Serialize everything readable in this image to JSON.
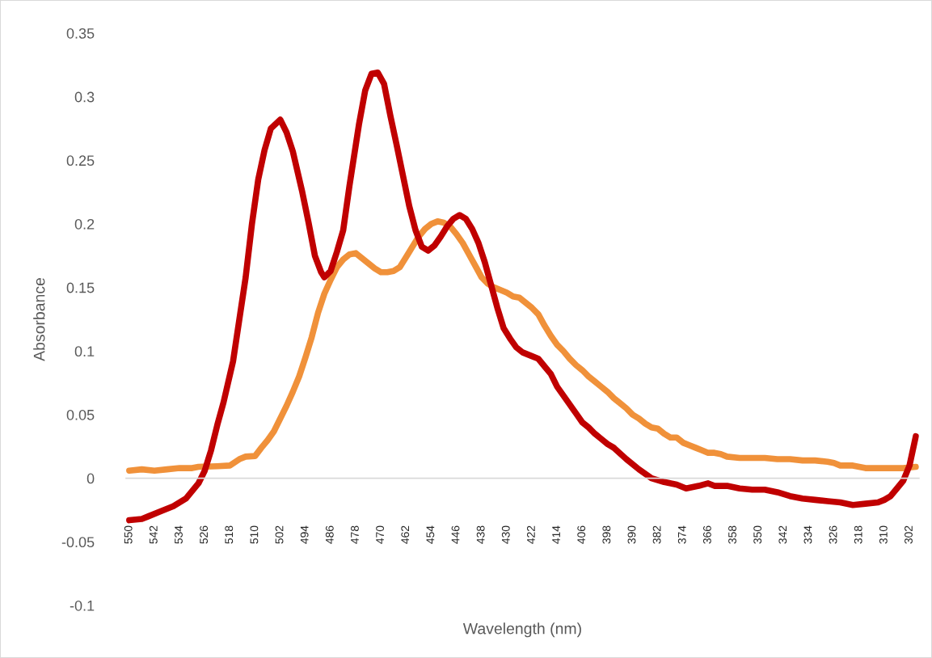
{
  "chart_data": {
    "type": "line",
    "xlabel": "Wavelength (nm)",
    "ylabel": "Absorbance",
    "xlim": [
      551,
      299
    ],
    "xticks": [
      550,
      542,
      534,
      526,
      518,
      510,
      502,
      494,
      486,
      478,
      470,
      462,
      454,
      446,
      438,
      430,
      422,
      414,
      406,
      398,
      390,
      382,
      374,
      366,
      358,
      350,
      342,
      334,
      326,
      318,
      310,
      302
    ],
    "ylim": [
      -0.1,
      0.35
    ],
    "yticks": [
      -0.1,
      -0.05,
      0,
      0.05,
      0.1,
      0.15,
      0.2,
      0.25,
      0.3,
      0.35
    ],
    "series": [
      {
        "color": "#f0913a",
        "x": [
          550,
          546,
          542,
          538,
          534,
          530,
          528,
          522,
          518,
          515,
          513,
          510,
          508,
          506,
          504,
          502,
          500,
          498,
          496,
          494,
          492,
          490,
          488,
          486,
          484,
          482,
          480,
          478,
          476,
          474,
          472,
          470,
          468,
          466,
          464,
          462,
          460,
          458,
          456,
          454,
          452,
          450,
          448,
          446,
          444,
          442,
          440,
          438,
          436,
          434,
          432,
          430,
          428,
          426,
          424,
          422,
          420,
          418,
          416,
          414,
          412,
          410,
          408,
          406,
          404,
          402,
          400,
          398,
          396,
          394,
          392,
          390,
          388,
          386,
          384,
          382,
          380,
          378,
          376,
          374,
          372,
          370,
          368,
          366,
          364,
          362,
          360,
          356,
          352,
          348,
          344,
          340,
          336,
          332,
          328,
          326,
          324,
          320,
          316,
          312,
          308,
          304,
          300
        ],
        "values": [
          0.006,
          0.007,
          0.006,
          0.007,
          0.008,
          0.008,
          0.009,
          0.0095,
          0.01,
          0.015,
          0.017,
          0.0175,
          0.024,
          0.03,
          0.037,
          0.047,
          0.057,
          0.068,
          0.08,
          0.095,
          0.111,
          0.13,
          0.145,
          0.156,
          0.166,
          0.172,
          0.176,
          0.177,
          0.173,
          0.169,
          0.165,
          0.162,
          0.162,
          0.163,
          0.166,
          0.174,
          0.182,
          0.19,
          0.196,
          0.2,
          0.202,
          0.201,
          0.198,
          0.192,
          0.185,
          0.176,
          0.167,
          0.158,
          0.153,
          0.15,
          0.148,
          0.146,
          0.143,
          0.142,
          0.138,
          0.134,
          0.129,
          0.12,
          0.112,
          0.105,
          0.1,
          0.094,
          0.089,
          0.085,
          0.08,
          0.076,
          0.072,
          0.068,
          0.063,
          0.059,
          0.055,
          0.05,
          0.047,
          0.043,
          0.04,
          0.039,
          0.035,
          0.032,
          0.032,
          0.028,
          0.026,
          0.024,
          0.022,
          0.02,
          0.02,
          0.019,
          0.017,
          0.016,
          0.016,
          0.016,
          0.015,
          0.015,
          0.014,
          0.014,
          0.013,
          0.012,
          0.01,
          0.01,
          0.008,
          0.008,
          0.008,
          0.008,
          0.009
        ]
      },
      {
        "color": "#c00000",
        "x": [
          550,
          546,
          544,
          540,
          536,
          532,
          528,
          526,
          524,
          522,
          520,
          517,
          515,
          513,
          511,
          509,
          507,
          505,
          502,
          500,
          498,
          495,
          493,
          491,
          489,
          488,
          486,
          484,
          482,
          480,
          477,
          475,
          473,
          471,
          469,
          467,
          465,
          463,
          461,
          459,
          457,
          455,
          453,
          451,
          449,
          447,
          445,
          443,
          441,
          439,
          437,
          435,
          433,
          431,
          429,
          427,
          425,
          422,
          420,
          418,
          416,
          414,
          412,
          410,
          408,
          406,
          404,
          402,
          400,
          398,
          396,
          392,
          388,
          384,
          380,
          376,
          373,
          369,
          366,
          364,
          360,
          356,
          352,
          348,
          344,
          340,
          336,
          332,
          328,
          324,
          320,
          316,
          312,
          310,
          308,
          306,
          304,
          302,
          300
        ],
        "values": [
          -0.033,
          -0.032,
          -0.03,
          -0.026,
          -0.022,
          -0.016,
          -0.004,
          0.006,
          0.022,
          0.042,
          0.06,
          0.092,
          0.125,
          0.158,
          0.2,
          0.235,
          0.258,
          0.275,
          0.282,
          0.272,
          0.257,
          0.225,
          0.201,
          0.175,
          0.162,
          0.158,
          0.163,
          0.178,
          0.195,
          0.23,
          0.278,
          0.305,
          0.318,
          0.319,
          0.31,
          0.285,
          0.262,
          0.238,
          0.214,
          0.195,
          0.182,
          0.179,
          0.183,
          0.19,
          0.198,
          0.204,
          0.207,
          0.204,
          0.196,
          0.185,
          0.17,
          0.152,
          0.134,
          0.118,
          0.11,
          0.103,
          0.099,
          0.096,
          0.094,
          0.088,
          0.082,
          0.072,
          0.065,
          0.058,
          0.051,
          0.044,
          0.04,
          0.035,
          0.031,
          0.027,
          0.024,
          0.015,
          0.007,
          0.0,
          -0.003,
          -0.005,
          -0.008,
          -0.006,
          -0.004,
          -0.006,
          -0.006,
          -0.008,
          -0.009,
          -0.009,
          -0.011,
          -0.014,
          -0.016,
          -0.017,
          -0.018,
          -0.019,
          -0.021,
          -0.02,
          -0.019,
          -0.017,
          -0.014,
          -0.008,
          -0.002,
          0.01,
          0.033
        ]
      }
    ]
  }
}
